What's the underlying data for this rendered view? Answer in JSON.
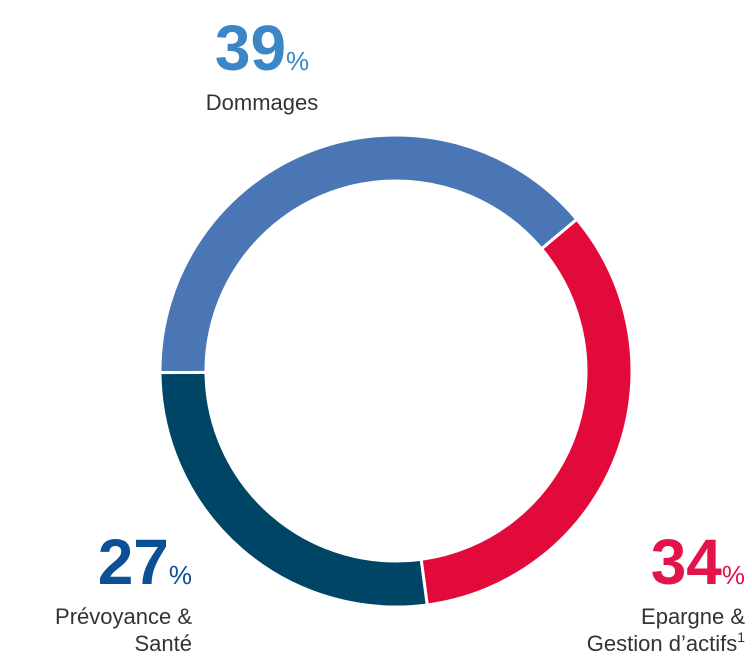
{
  "chart_data": {
    "type": "donut",
    "categories": [
      [
        "Dommages"
      ],
      [
        "Epargne &",
        "Gestion d’actifs"
      ],
      [
        "Prévoyance &",
        "Santé"
      ]
    ],
    "category_notes": [
      null,
      "1",
      null
    ],
    "values": [
      39,
      34,
      27
    ],
    "unit": "%",
    "colors": [
      "#4a76b5",
      "#e20a3a",
      "#004466"
    ],
    "label_colors": [
      "#3a86c6",
      "#e2144a",
      "#0b4f96"
    ]
  }
}
